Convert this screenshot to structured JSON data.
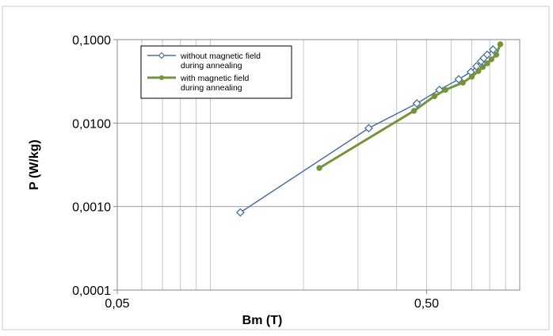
{
  "chart_data": {
    "type": "line",
    "title": "",
    "xlabel": "Bm (T)",
    "ylabel": "P (W/kg)",
    "x_scale": "log",
    "y_scale": "log",
    "xlim": [
      0.05,
      1.0
    ],
    "ylim": [
      0.0001,
      0.1
    ],
    "grid": true,
    "legend_position": "top-left",
    "x_ticks": [
      {
        "value": 0.05,
        "label": "0,05"
      },
      {
        "value": 0.5,
        "label": "0,50"
      }
    ],
    "y_ticks": [
      {
        "value": 0.0001,
        "label": "0,0001"
      },
      {
        "value": 0.001,
        "label": "0,0010"
      },
      {
        "value": 0.01,
        "label": "0,0100"
      },
      {
        "value": 0.1,
        "label": "0,1000"
      }
    ],
    "series": [
      {
        "name": "without magnetic field during annealing",
        "legend_lines": [
          "without magnetic field",
          "during annealing"
        ],
        "color": "#4a6fa5",
        "marker": "diamond",
        "x": [
          0.125,
          0.325,
          0.465,
          0.55,
          0.635,
          0.695,
          0.725,
          0.75,
          0.765,
          0.785,
          0.82
        ],
        "y": [
          0.00085,
          0.0087,
          0.0172,
          0.025,
          0.0335,
          0.041,
          0.048,
          0.055,
          0.06,
          0.066,
          0.076
        ]
      },
      {
        "name": "with magnetic field during annealing",
        "legend_lines": [
          "with magnetic field",
          "during annealing"
        ],
        "color": "#76933c",
        "marker": "circle",
        "x": [
          0.225,
          0.455,
          0.53,
          0.575,
          0.655,
          0.7,
          0.735,
          0.76,
          0.785,
          0.81,
          0.84,
          0.865
        ],
        "y": [
          0.0029,
          0.014,
          0.021,
          0.025,
          0.0305,
          0.036,
          0.042,
          0.047,
          0.052,
          0.058,
          0.066,
          0.088
        ]
      }
    ]
  }
}
